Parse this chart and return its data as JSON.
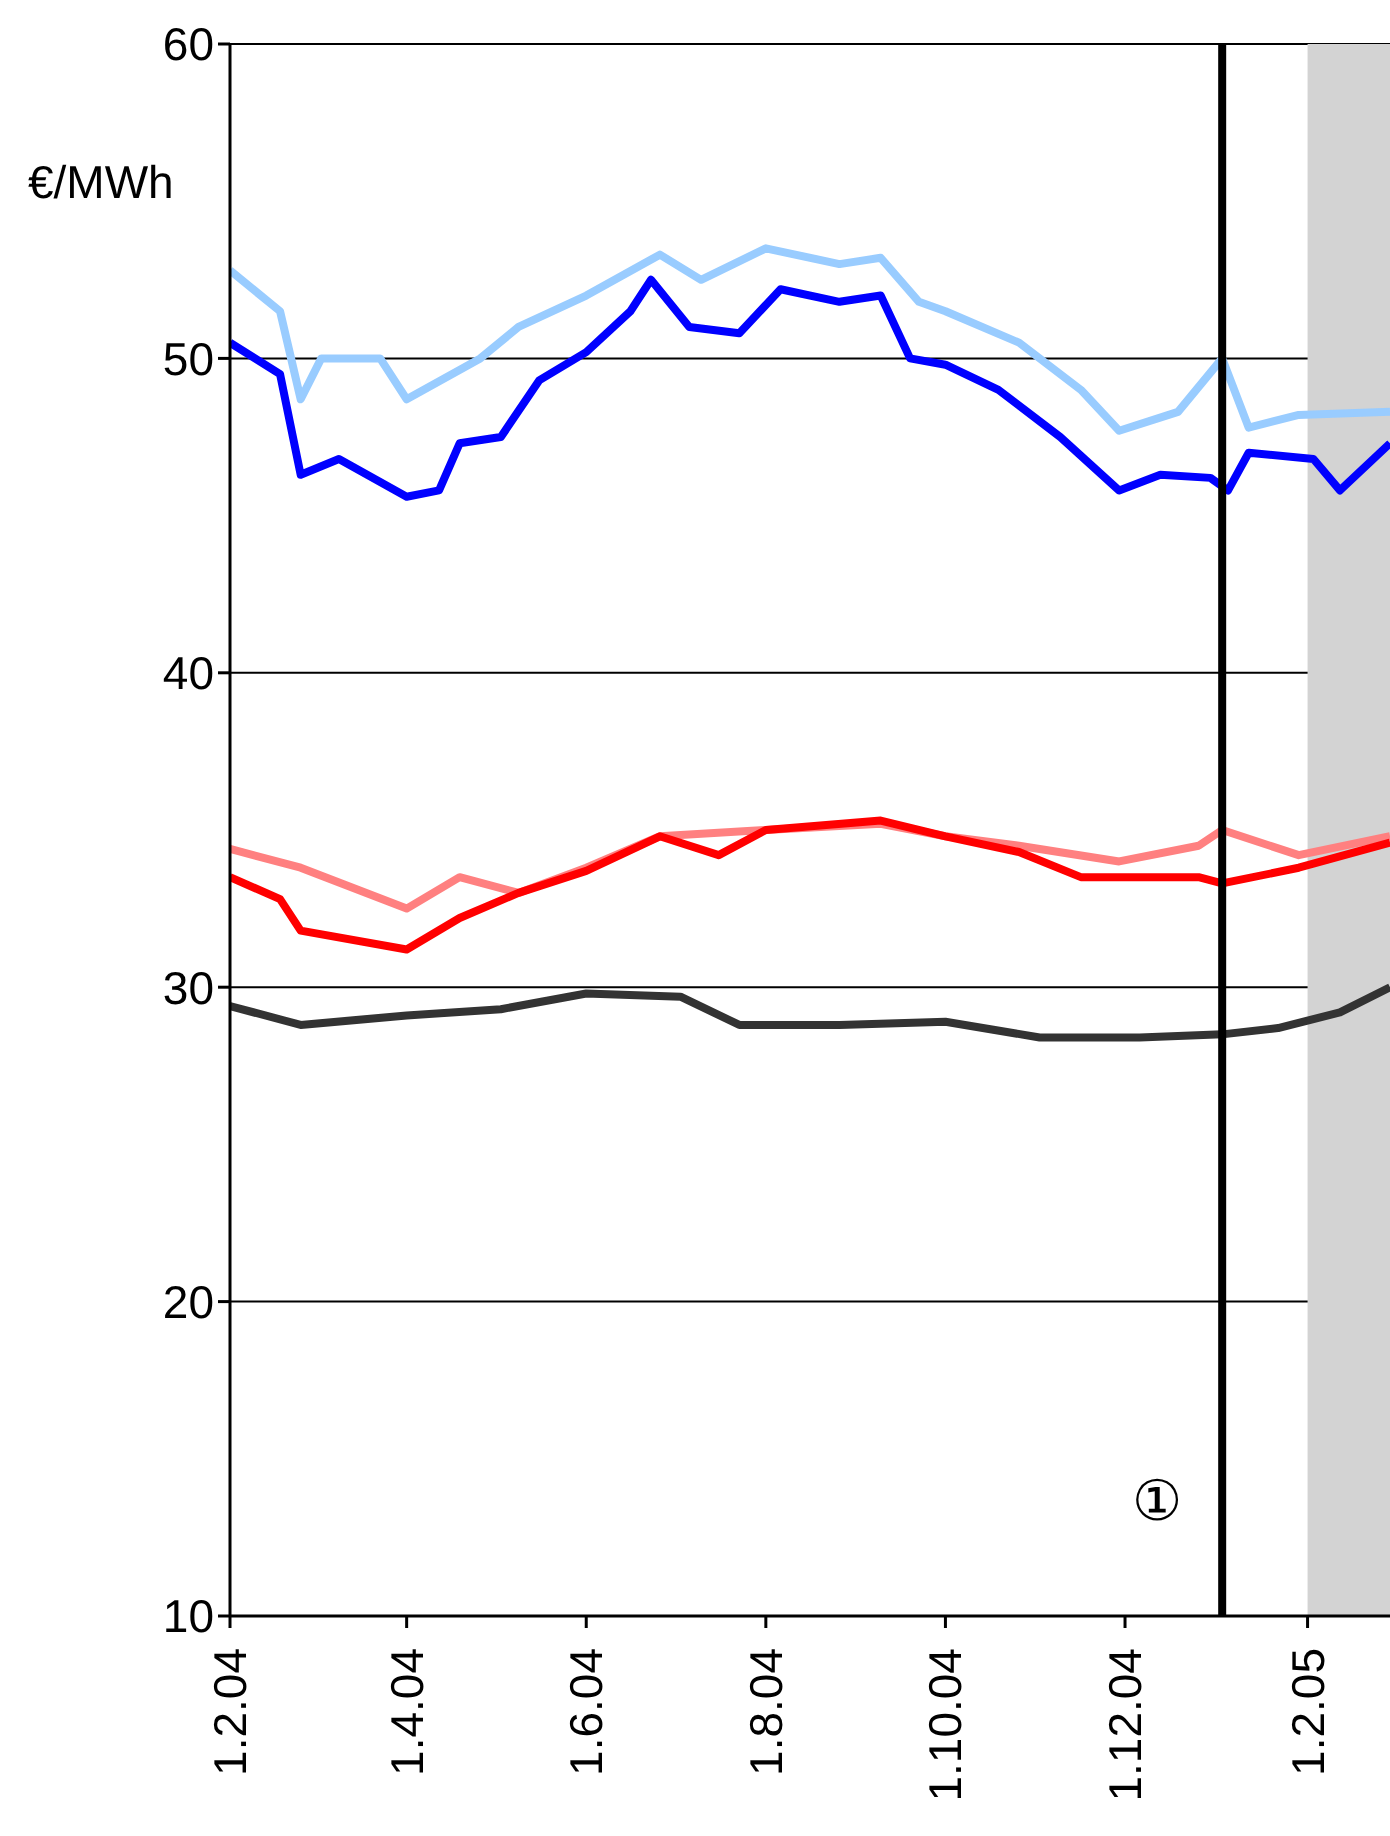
{
  "chart_data": {
    "type": "line",
    "ylabel": "€/MWh",
    "xlim": [
      "2004-02-01",
      "2005-03-01"
    ],
    "xticks": [
      {
        "value": "2004-02-01",
        "label": "1.2.04"
      },
      {
        "value": "2004-04-01",
        "label": "1.4.04"
      },
      {
        "value": "2004-06-01",
        "label": "1.6.04"
      },
      {
        "value": "2004-08-01",
        "label": "1.8.04"
      },
      {
        "value": "2004-10-01",
        "label": "1.10.04"
      },
      {
        "value": "2004-12-01",
        "label": "1.12.04"
      },
      {
        "value": "2005-02-01",
        "label": "1.2.05"
      }
    ],
    "ylim": [
      10,
      60
    ],
    "yticks": [
      10,
      20,
      30,
      40,
      50,
      60
    ],
    "grid": "y",
    "legend": false,
    "marker": "none",
    "line_style": "solid",
    "ref_lines": [
      {
        "axis": "x",
        "value": "2005-01-03",
        "color": "#000000"
      }
    ],
    "bands": [
      {
        "axis": "x",
        "from": "2005-02-01",
        "to": "2005-03-01",
        "color": "#d3d3d3"
      }
    ],
    "annotations": [
      "①"
    ],
    "series": [
      {
        "color": "#99ccff",
        "x": [
          "2004-02-01",
          "2004-02-18",
          "2004-02-25",
          "2004-03-03",
          "2004-03-23",
          "2004-04-01",
          "2004-04-26",
          "2004-05-09",
          "2004-06-01",
          "2004-06-26",
          "2004-07-10",
          "2004-08-01",
          "2004-08-26",
          "2004-09-09",
          "2004-09-22",
          "2004-10-01",
          "2004-10-26",
          "2004-11-16",
          "2004-11-29",
          "2004-12-19",
          "2005-01-03",
          "2005-01-12",
          "2005-01-29",
          "2005-03-01"
        ],
        "values": [
          52.8,
          51.5,
          48.7,
          50,
          50,
          48.7,
          50,
          51,
          52,
          53.3,
          52.5,
          53.5,
          53,
          53.2,
          51.8,
          51.5,
          50.5,
          49,
          47.7,
          48.3,
          50,
          47.8,
          48.2,
          48.3
        ]
      },
      {
        "color": "#0000ff",
        "x": [
          "2004-02-01",
          "2004-02-18",
          "2004-02-25",
          "2004-03-09",
          "2004-04-01",
          "2004-04-12",
          "2004-04-19",
          "2004-05-03",
          "2004-05-16",
          "2004-06-01",
          "2004-06-16",
          "2004-06-23",
          "2004-07-06",
          "2004-07-23",
          "2004-08-06",
          "2004-08-26",
          "2004-09-09",
          "2004-09-19",
          "2004-10-01",
          "2004-10-19",
          "2004-11-09",
          "2004-11-29",
          "2004-12-13",
          "2004-12-30",
          "2005-01-05",
          "2005-01-12",
          "2005-02-03",
          "2005-02-12",
          "2005-03-01"
        ],
        "values": [
          50.5,
          49.5,
          46.3,
          46.8,
          45.6,
          45.8,
          47.3,
          47.5,
          49.3,
          50.2,
          51.5,
          52.5,
          51,
          50.8,
          52.2,
          51.8,
          52,
          50,
          49.8,
          49,
          47.5,
          45.8,
          46.3,
          46.2,
          45.8,
          47,
          46.8,
          45.8,
          47.3
        ]
      },
      {
        "color": "#ff8080",
        "x": [
          "2004-02-01",
          "2004-02-25",
          "2004-04-01",
          "2004-04-19",
          "2004-05-09",
          "2004-06-01",
          "2004-06-26",
          "2004-08-01",
          "2004-09-09",
          "2004-10-01",
          "2004-10-26",
          "2004-11-29",
          "2004-12-26",
          "2005-01-03",
          "2005-01-29",
          "2005-03-01"
        ],
        "values": [
          34.4,
          33.8,
          32.5,
          33.5,
          33,
          33.8,
          34.8,
          35,
          35.2,
          34.8,
          34.5,
          34,
          34.5,
          35,
          34.2,
          34.8
        ]
      },
      {
        "color": "#ff0000",
        "x": [
          "2004-02-01",
          "2004-02-18",
          "2004-02-25",
          "2004-04-01",
          "2004-04-19",
          "2004-05-09",
          "2004-06-01",
          "2004-06-26",
          "2004-07-16",
          "2004-08-01",
          "2004-09-09",
          "2004-10-01",
          "2004-10-26",
          "2004-11-16",
          "2004-12-26",
          "2005-01-03",
          "2005-01-29",
          "2005-03-01"
        ],
        "values": [
          33.5,
          32.8,
          31.8,
          31.2,
          32.2,
          33,
          33.7,
          34.8,
          34.2,
          35,
          35.3,
          34.8,
          34.3,
          33.5,
          33.5,
          33.3,
          33.8,
          34.6
        ]
      },
      {
        "color": "#333333",
        "x": [
          "2004-02-01",
          "2004-02-25",
          "2004-04-01",
          "2004-05-03",
          "2004-06-01",
          "2004-07-03",
          "2004-07-23",
          "2004-08-26",
          "2004-10-01",
          "2004-11-02",
          "2004-12-06",
          "2005-01-03",
          "2005-01-22",
          "2005-02-12",
          "2005-03-01"
        ],
        "values": [
          29.4,
          28.8,
          29.1,
          29.3,
          29.8,
          29.7,
          28.8,
          28.8,
          28.9,
          28.4,
          28.4,
          28.5,
          28.7,
          29.2,
          30
        ]
      }
    ]
  }
}
